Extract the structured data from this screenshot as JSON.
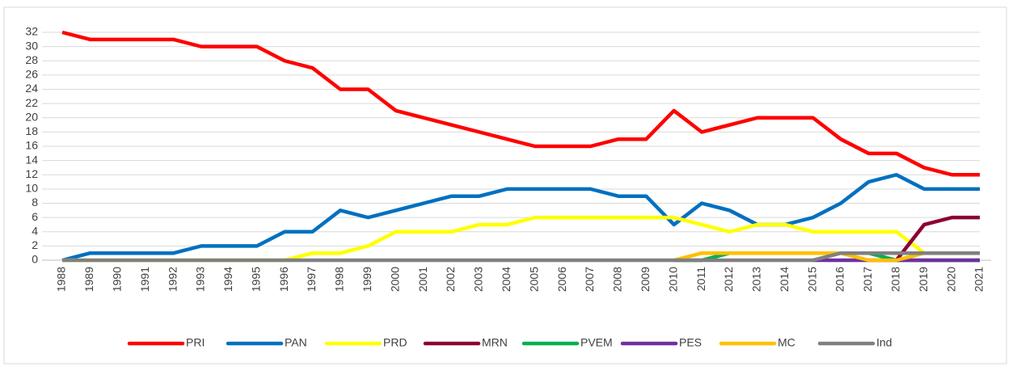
{
  "chart_data": {
    "type": "line",
    "categories": [
      "1988",
      "1989",
      "1990",
      "1991",
      "1992",
      "1993",
      "1994",
      "1995",
      "1996",
      "1997",
      "1998",
      "1999",
      "2000",
      "2001",
      "2002",
      "2003",
      "2004",
      "2005",
      "2006",
      "2007",
      "2008",
      "2009",
      "2010",
      "2011",
      "2012",
      "2013",
      "2014",
      "2015",
      "2016",
      "2017",
      "2018",
      "2019",
      "2020",
      "2021"
    ],
    "series": [
      {
        "name": "PRI",
        "color": "#ff0000",
        "values": [
          32,
          31,
          31,
          31,
          31,
          30,
          30,
          30,
          28,
          27,
          24,
          24,
          21,
          20,
          19,
          18,
          17,
          16,
          16,
          16,
          17,
          17,
          21,
          18,
          19,
          20,
          20,
          20,
          17,
          15,
          15,
          13,
          12,
          12
        ]
      },
      {
        "name": "PAN",
        "color": "#0070c0",
        "values": [
          0,
          1,
          1,
          1,
          1,
          2,
          2,
          2,
          4,
          4,
          7,
          6,
          7,
          8,
          9,
          9,
          10,
          10,
          10,
          10,
          9,
          9,
          5,
          8,
          7,
          5,
          5,
          6,
          8,
          11,
          12,
          10,
          10,
          10
        ]
      },
      {
        "name": "PRD",
        "color": "#ffff00",
        "values": [
          0,
          0,
          0,
          0,
          0,
          0,
          0,
          0,
          0,
          1,
          1,
          2,
          4,
          4,
          4,
          5,
          5,
          6,
          6,
          6,
          6,
          6,
          6,
          5,
          4,
          5,
          5,
          4,
          4,
          4,
          4,
          1,
          1,
          1
        ]
      },
      {
        "name": "MRN",
        "color": "#8b0033",
        "values": [
          null,
          null,
          null,
          null,
          null,
          null,
          null,
          null,
          null,
          null,
          null,
          null,
          null,
          null,
          null,
          null,
          null,
          null,
          null,
          null,
          null,
          null,
          null,
          null,
          null,
          null,
          null,
          null,
          null,
          null,
          0,
          5,
          6,
          6
        ]
      },
      {
        "name": "PVEM",
        "color": "#00b050",
        "values": [
          null,
          null,
          null,
          null,
          null,
          null,
          null,
          null,
          null,
          null,
          null,
          null,
          null,
          null,
          null,
          null,
          null,
          null,
          null,
          null,
          null,
          null,
          0,
          0,
          1,
          1,
          1,
          1,
          1,
          1,
          0,
          0,
          0,
          0
        ]
      },
      {
        "name": "PES",
        "color": "#7030a0",
        "values": [
          null,
          null,
          null,
          null,
          null,
          null,
          null,
          null,
          null,
          null,
          null,
          null,
          null,
          null,
          null,
          null,
          null,
          null,
          null,
          null,
          null,
          null,
          null,
          null,
          null,
          null,
          null,
          0,
          0,
          0,
          0,
          0,
          0,
          0
        ]
      },
      {
        "name": "MC",
        "color": "#ffc000",
        "values": [
          null,
          null,
          null,
          null,
          null,
          null,
          null,
          null,
          null,
          null,
          null,
          null,
          null,
          null,
          null,
          null,
          null,
          null,
          null,
          null,
          null,
          null,
          0,
          1,
          1,
          1,
          1,
          1,
          1,
          0,
          0,
          1,
          1,
          1
        ]
      },
      {
        "name": "Ind",
        "color": "#808080",
        "values": [
          0,
          0,
          0,
          0,
          0,
          0,
          0,
          0,
          0,
          0,
          0,
          0,
          0,
          0,
          0,
          0,
          0,
          0,
          0,
          0,
          0,
          0,
          0,
          0,
          0,
          0,
          0,
          0,
          1,
          1,
          1,
          1,
          1,
          1
        ]
      }
    ],
    "ylim": [
      0,
      32
    ],
    "yticks": [
      0,
      2,
      4,
      6,
      8,
      10,
      12,
      14,
      16,
      18,
      20,
      22,
      24,
      26,
      28,
      30,
      32
    ],
    "grid": true,
    "legend": "bottom"
  }
}
